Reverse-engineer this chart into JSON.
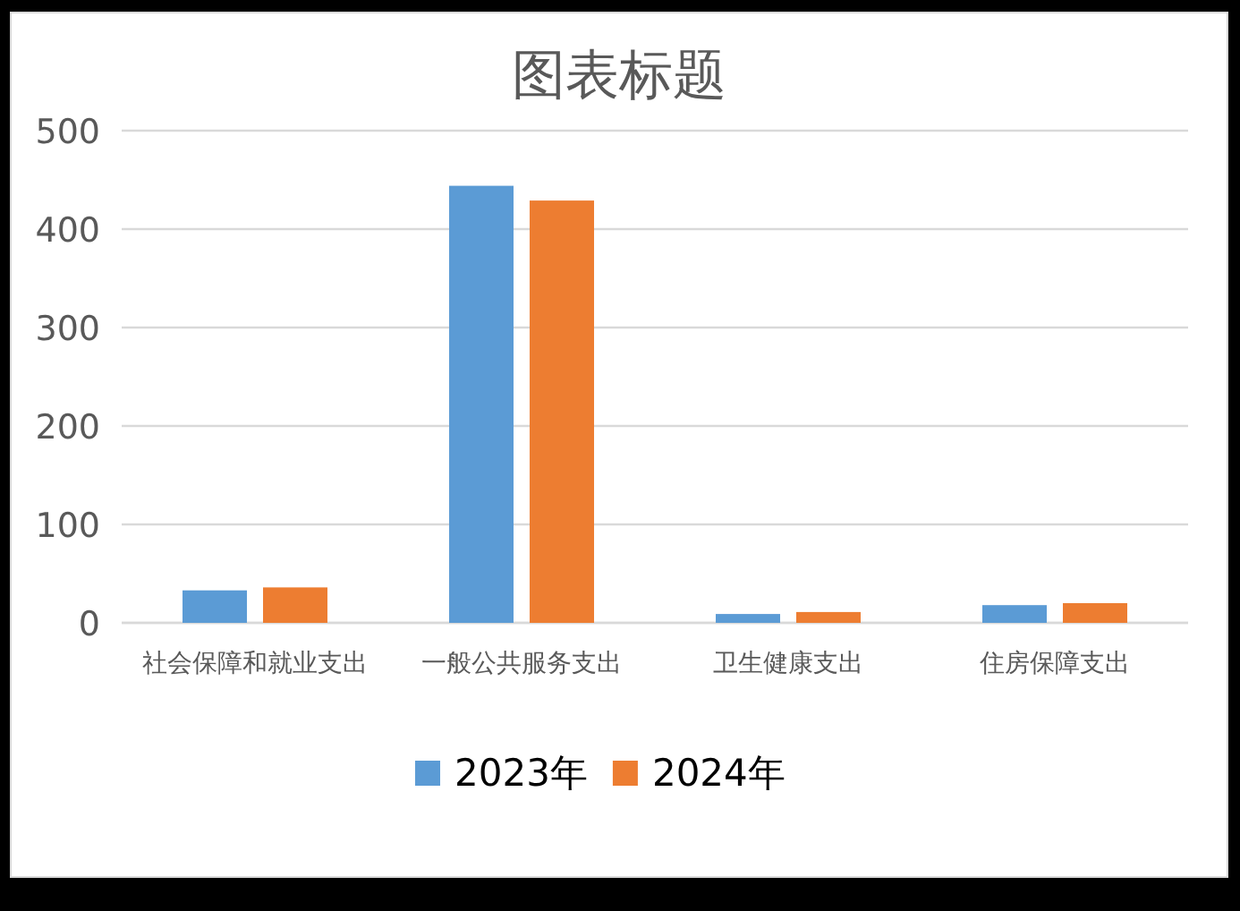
{
  "chart_data": {
    "type": "bar",
    "title": "图表标题",
    "categories": [
      "社会保障和就业支出",
      "一般公共服务支出",
      "卫生健康支出",
      "住房保障支出"
    ],
    "series": [
      {
        "name": "2023年",
        "color": "#5b9bd5",
        "values": [
          33,
          444,
          9,
          18
        ]
      },
      {
        "name": "2024年",
        "color": "#ed7d31",
        "values": [
          36,
          429,
          11,
          20
        ]
      }
    ],
    "ylim": [
      0,
      500
    ],
    "yticks": [
      0,
      100,
      200,
      300,
      400,
      500
    ],
    "grid": "y",
    "legend": "bottom"
  }
}
